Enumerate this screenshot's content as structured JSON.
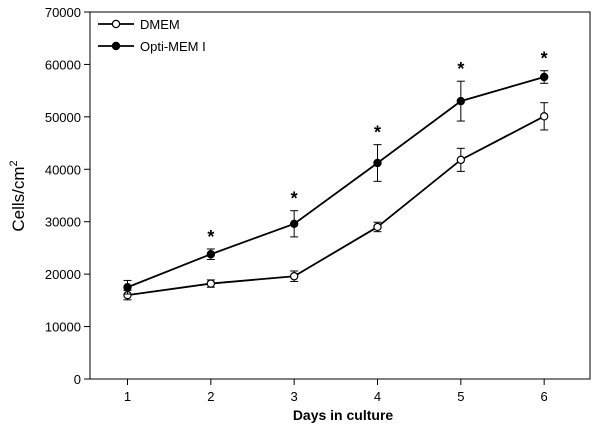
{
  "chart_data": {
    "type": "line",
    "title": "",
    "xlabel": "Days in culture",
    "ylabel": "Cells/cm",
    "ylabel_superscript": "2",
    "x": [
      1,
      2,
      3,
      4,
      5,
      6
    ],
    "xlim": [
      0.55,
      6.55
    ],
    "ylim": [
      0,
      70000
    ],
    "yticks": [
      0,
      10000,
      20000,
      30000,
      40000,
      50000,
      60000,
      70000
    ],
    "grid": false,
    "legend_position": "top-left",
    "series": [
      {
        "name": "DMEM",
        "marker": "open-circle",
        "values": [
          16000,
          18200,
          19600,
          29000,
          41800,
          50100
        ],
        "errors": [
          900,
          700,
          1000,
          900,
          2200,
          2600
        ]
      },
      {
        "name": "Opti-MEM I",
        "marker": "filled-circle",
        "values": [
          17500,
          23800,
          29600,
          41200,
          53000,
          57600
        ],
        "errors": [
          1300,
          1000,
          2500,
          3500,
          3800,
          1200
        ]
      }
    ],
    "annotations": [
      {
        "x": 2,
        "text": "*"
      },
      {
        "x": 3,
        "text": "*"
      },
      {
        "x": 4,
        "text": "*"
      },
      {
        "x": 5,
        "text": "*"
      },
      {
        "x": 6,
        "text": "*"
      }
    ]
  }
}
